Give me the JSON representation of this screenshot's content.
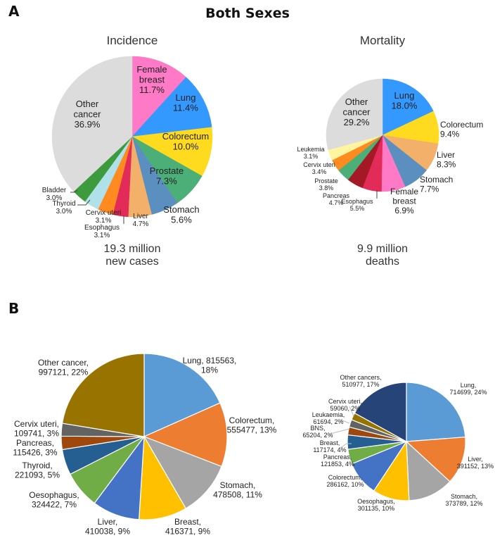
{
  "panel_a": {
    "letter": "A",
    "title": "Both Sexes",
    "incidence": {
      "title": "Incidence",
      "total_line1": "19.3 million",
      "total_line2": "new cases"
    },
    "mortality": {
      "title": "Mortality",
      "total_line1": "9.9 million",
      "total_line2": "deaths"
    }
  },
  "panel_b": {
    "letter": "B"
  },
  "chart_data": [
    {
      "id": "incidence",
      "type": "pie",
      "title": "Incidence",
      "direction": "clockwise-from-top",
      "unit": "percent",
      "slices": [
        {
          "label": "Female breast",
          "value": 11.7,
          "text": [
            "Female",
            "breast",
            "11.7%"
          ],
          "color": "#ff7ac6"
        },
        {
          "label": "Lung",
          "value": 11.4,
          "text": [
            "Lung",
            "11.4%"
          ],
          "color": "#3399ff"
        },
        {
          "label": "Colorectum",
          "value": 10.0,
          "text": [
            "Colorectum",
            "10.0%"
          ],
          "color": "#ffdb1f"
        },
        {
          "label": "Prostate",
          "value": 7.3,
          "text": [
            "Prostate",
            "7.3%"
          ],
          "color": "#4caf78"
        },
        {
          "label": "Stomach",
          "value": 5.6,
          "text": [
            "Stomach",
            "5.6%"
          ],
          "color": "#5b8fbf"
        },
        {
          "label": "Liver",
          "value": 4.7,
          "text": [
            "Liver",
            "4.7%"
          ],
          "color": "#f2b06a"
        },
        {
          "label": "Esophagus",
          "value": 3.1,
          "text": [
            "Esophagus",
            "3.1%"
          ],
          "color": "#e32b5a"
        },
        {
          "label": "Cervix uteri",
          "value": 3.1,
          "text": [
            "Cervix uteri",
            "3.1%"
          ],
          "color": "#ff8a1f"
        },
        {
          "label": "Thyroid",
          "value": 3.0,
          "text": [
            "Thyroid",
            "3.0%"
          ],
          "color": "#b0e0e8"
        },
        {
          "label": "Bladder",
          "value": 3.0,
          "text": [
            "Bladder",
            "3.0%"
          ],
          "color": "#3d9a3d"
        },
        {
          "label": "Other cancer",
          "value": 36.9,
          "text": [
            "Other",
            "cancer",
            "36.9%"
          ],
          "color": "#dcdcdc"
        }
      ]
    },
    {
      "id": "mortality",
      "type": "pie",
      "title": "Mortality",
      "direction": "clockwise-from-top",
      "unit": "percent",
      "slices": [
        {
          "label": "Lung",
          "value": 18.0,
          "text": [
            "Lung",
            "18.0%"
          ],
          "color": "#3399ff"
        },
        {
          "label": "Colorectum",
          "value": 9.4,
          "text": [
            "Colorectum",
            "9.4%"
          ],
          "color": "#ffdb1f"
        },
        {
          "label": "Liver",
          "value": 8.3,
          "text": [
            "Liver",
            "8.3%"
          ],
          "color": "#f2b06a"
        },
        {
          "label": "Stomach",
          "value": 7.7,
          "text": [
            "Stomach",
            "7.7%"
          ],
          "color": "#5b8fbf"
        },
        {
          "label": "Female breast",
          "value": 6.9,
          "text": [
            "Female",
            "breast",
            "6.9%"
          ],
          "color": "#ff7ac6"
        },
        {
          "label": "Esophagus",
          "value": 5.5,
          "text": [
            "Esophagus",
            "5.5%"
          ],
          "color": "#e32b5a"
        },
        {
          "label": "Pancreas",
          "value": 4.7,
          "text": [
            "Pancreas",
            "4.7%"
          ],
          "color": "#a31a26"
        },
        {
          "label": "Prostate",
          "value": 3.8,
          "text": [
            "Prostate",
            "3.8%"
          ],
          "color": "#4caf78"
        },
        {
          "label": "Cervix uteri",
          "value": 3.4,
          "text": [
            "Cervix uteri",
            "3.4%"
          ],
          "color": "#ff8a1f"
        },
        {
          "label": "Leukemia",
          "value": 3.1,
          "text": [
            "Leukemia",
            "3.1%"
          ],
          "color": "#fff5a0"
        },
        {
          "label": "Other cancer",
          "value": 29.2,
          "text": [
            "Other",
            "cancer",
            "29.2%"
          ],
          "color": "#dcdcdc"
        }
      ]
    },
    {
      "id": "b-left",
      "type": "pie",
      "title": "",
      "direction": "clockwise-from-top",
      "unit": "cases",
      "slices": [
        {
          "label": "Lung",
          "value": 815563,
          "pct": "18%",
          "text": [
            "Lung, 815563,",
            "18%"
          ],
          "color": "#5b9bd5"
        },
        {
          "label": "Colorectum",
          "value": 555477,
          "pct": "13%",
          "text": [
            "Colorectum,",
            "555477, 13%"
          ],
          "color": "#ed7d31"
        },
        {
          "label": "Stomach",
          "value": 478508,
          "pct": "11%",
          "text": [
            "Stomach,",
            "478508, 11%"
          ],
          "color": "#a5a5a5"
        },
        {
          "label": "Breast",
          "value": 416371,
          "pct": "9%",
          "text": [
            "Breast,",
            "416371, 9%"
          ],
          "color": "#ffc000"
        },
        {
          "label": "Liver",
          "value": 410038,
          "pct": "9%",
          "text": [
            "Liver,",
            "410038, 9%"
          ],
          "color": "#4472c4"
        },
        {
          "label": "Oesophagus",
          "value": 324422,
          "pct": "7%",
          "text": [
            "Oesophagus,",
            "324422, 7%"
          ],
          "color": "#70ad47"
        },
        {
          "label": "Thyroid",
          "value": 221093,
          "pct": "5%",
          "text": [
            "Thyroid,",
            "221093, 5%"
          ],
          "color": "#255e91"
        },
        {
          "label": "Pancreas",
          "value": 115426,
          "pct": "3%",
          "text": [
            "Pancreas,",
            "115426, 3%"
          ],
          "color": "#9e480e"
        },
        {
          "label": "Cervix uteri",
          "value": 109741,
          "pct": "3%",
          "text": [
            "Cervix uteri,",
            "109741, 3%"
          ],
          "color": "#636363"
        },
        {
          "label": "Other cancer",
          "value": 997121,
          "pct": "22%",
          "text": [
            "Other cancer,",
            "997121, 22%"
          ],
          "color": "#997300"
        }
      ]
    },
    {
      "id": "b-right",
      "type": "pie",
      "title": "",
      "direction": "clockwise-from-top",
      "unit": "deaths",
      "slices": [
        {
          "label": "Lung",
          "value": 714699,
          "pct": "24%",
          "text": [
            "Lung,",
            "714699, 24%"
          ],
          "color": "#5b9bd5"
        },
        {
          "label": "Liver",
          "value": 391152,
          "pct": "13%",
          "text": [
            "Liver,",
            "391152, 13%"
          ],
          "color": "#ed7d31"
        },
        {
          "label": "Stomach",
          "value": 373789,
          "pct": "12%",
          "text": [
            "Stomach,",
            "373789, 12%"
          ],
          "color": "#a5a5a5"
        },
        {
          "label": "Oesophagus",
          "value": 301135,
          "pct": "10%",
          "text": [
            "Oesophagus,",
            "301135, 10%"
          ],
          "color": "#ffc000"
        },
        {
          "label": "Colorectum",
          "value": 286162,
          "pct": "10%",
          "text": [
            "Colorectum,",
            "286162, 10%"
          ],
          "color": "#4472c4"
        },
        {
          "label": "Pancreas",
          "value": 121853,
          "pct": "4%",
          "text": [
            "Pancreas,",
            "121853, 4%"
          ],
          "color": "#70ad47"
        },
        {
          "label": "Breast",
          "value": 117174,
          "pct": "4%",
          "text": [
            "Breast,",
            "117174, 4%"
          ],
          "color": "#255e91"
        },
        {
          "label": "BNS",
          "value": 65204,
          "pct": "2%",
          "text": [
            "BNS,",
            "65204, 2%"
          ],
          "color": "#9e480e"
        },
        {
          "label": "Leukaemia",
          "value": 61694,
          "pct": "2%",
          "text": [
            "Leukaemia,",
            "61694, 2%"
          ],
          "color": "#636363"
        },
        {
          "label": "Cervix uteri",
          "value": 59060,
          "pct": "2%",
          "text": [
            "Cervix uteri,",
            "59060, 2%"
          ],
          "color": "#997300"
        },
        {
          "label": "Other cancers",
          "value": 510977,
          "pct": "17%",
          "text": [
            "Other cancers,",
            "510977, 17%"
          ],
          "color": "#264478"
        }
      ]
    }
  ]
}
